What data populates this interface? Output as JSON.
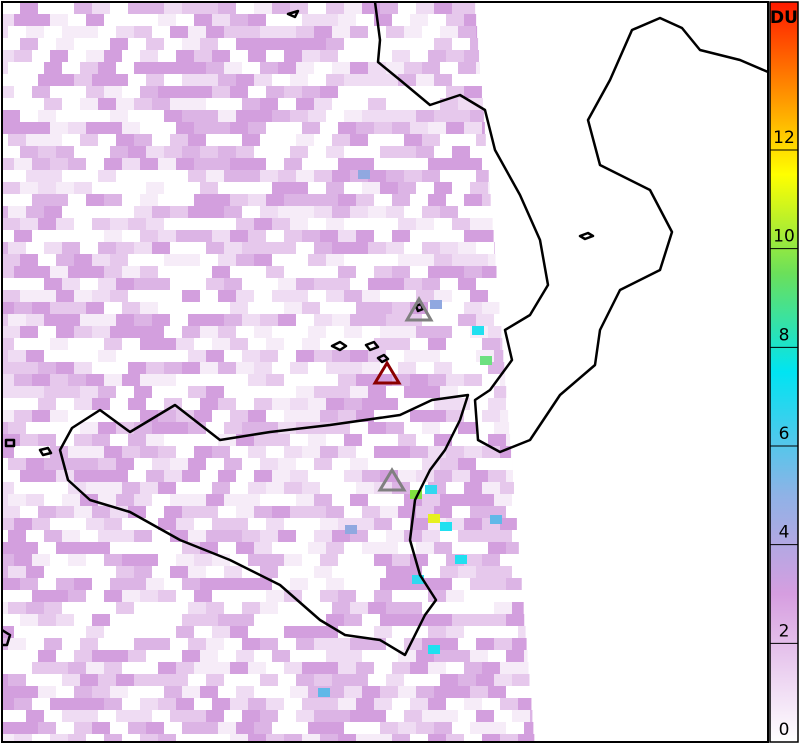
{
  "colorbar": {
    "title": "DU",
    "lim": [
      0,
      15
    ],
    "ticks": [
      0,
      2,
      4,
      6,
      8,
      10,
      12
    ],
    "colorscale": [
      {
        "value": 0,
        "color": "#ffffff"
      },
      {
        "value": 3,
        "color": "#d69ee0"
      },
      {
        "value": 5,
        "color": "#8fb2e6"
      },
      {
        "value": 7.5,
        "color": "#00e4f2"
      },
      {
        "value": 9.5,
        "color": "#6be05a"
      },
      {
        "value": 11.5,
        "color": "#ffff00"
      },
      {
        "value": 13,
        "color": "#ff9a00"
      },
      {
        "value": 15,
        "color": "#ff1a00"
      }
    ]
  }
}
